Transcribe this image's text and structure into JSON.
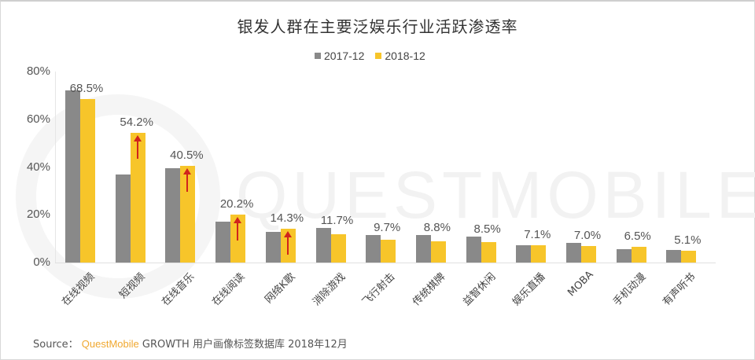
{
  "title": "银发人群在主要泛娱乐行业活跃渗透率",
  "legend": [
    {
      "label": "2017-12",
      "color": "#898989"
    },
    {
      "label": "2018-12",
      "color": "#f7c52a"
    }
  ],
  "watermark": "QUESTMOBILE",
  "source": {
    "prefix": "Source：",
    "brand": "QuestMobile",
    "rest": "GROWTH 用户画像标签数据库 2018年12月"
  },
  "yaxis": {
    "ticks": [
      "80%",
      "60%",
      "40%",
      "20%",
      "0%"
    ]
  },
  "chart_data": {
    "type": "bar",
    "title": "银发人群在主要泛娱乐行业活跃渗透率",
    "xlabel": "",
    "ylabel": "",
    "ylim": [
      0,
      80
    ],
    "yticks": [
      "0%",
      "20%",
      "40%",
      "60%",
      "80%"
    ],
    "grid": false,
    "legend_position": "top",
    "categories": [
      "在线视频",
      "短视频",
      "在线音乐",
      "在线阅读",
      "网络K歌",
      "消除游戏",
      "飞行射击",
      "传统棋牌",
      "益智休闲",
      "娱乐直播",
      "MOBA",
      "手机动漫",
      "有声听书"
    ],
    "series": [
      {
        "name": "2017-12",
        "color": "#898989",
        "values": [
          72.0,
          37.0,
          39.5,
          17.0,
          13.0,
          14.5,
          11.5,
          11.5,
          11.0,
          7.2,
          8.2,
          5.6,
          5.2
        ]
      },
      {
        "name": "2018-12",
        "color": "#f7c52a",
        "values": [
          68.5,
          54.2,
          40.5,
          20.2,
          14.3,
          11.7,
          9.7,
          8.8,
          8.5,
          7.1,
          7.0,
          6.5,
          5.1
        ]
      }
    ],
    "data_labels": [
      "68.5%",
      "54.2%",
      "40.5%",
      "20.2%",
      "14.3%",
      "11.7%",
      "9.7%",
      "8.8%",
      "8.5%",
      "7.1%",
      "7.0%",
      "6.5%",
      "5.1%"
    ],
    "annotations": [
      {
        "type": "red-up-arrow",
        "category": "短视频"
      },
      {
        "type": "red-up-arrow",
        "category": "在线音乐"
      },
      {
        "type": "red-up-arrow",
        "category": "在线阅读"
      },
      {
        "type": "red-up-arrow",
        "category": "网络K歌"
      }
    ]
  }
}
